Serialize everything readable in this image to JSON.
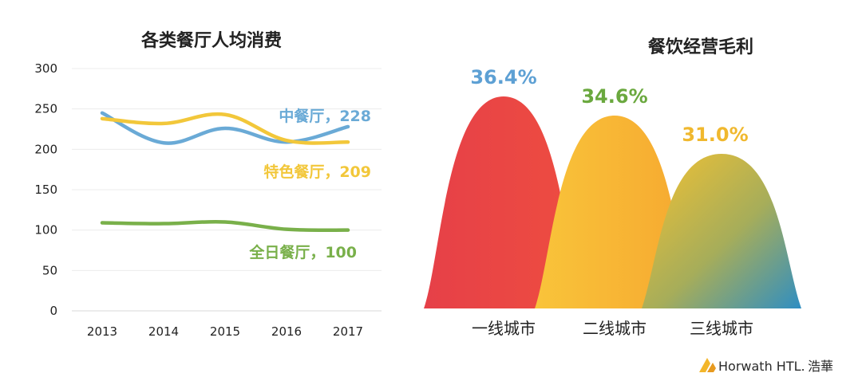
{
  "chart_data": [
    {
      "type": "line",
      "title": "各类餐厅人均消费",
      "x": [
        "2013",
        "2014",
        "2015",
        "2016",
        "2017"
      ],
      "ylim": [
        0,
        300
      ],
      "yticks": [
        "0",
        "50",
        "100",
        "150",
        "200",
        "250",
        "300"
      ],
      "grid": true,
      "series": [
        {
          "name": "中餐厅",
          "end_label": "中餐厅，228",
          "color": "#6aaad6",
          "values": [
            245,
            208,
            226,
            209,
            228
          ]
        },
        {
          "name": "特色餐厅",
          "end_label": "特色餐厅，209",
          "color": "#f2c73a",
          "values": [
            238,
            232,
            243,
            211,
            209
          ]
        },
        {
          "name": "全日餐厅",
          "end_label": "全日餐厅，100",
          "color": "#79b04a",
          "values": [
            109,
            108,
            110,
            101,
            100
          ]
        }
      ]
    },
    {
      "type": "bar",
      "title": "餐饮经营毛利",
      "categories": [
        "一线城市",
        "二线城市",
        "三线城市"
      ],
      "values": [
        36.4,
        34.6,
        31.0
      ],
      "labels": [
        "36.4%",
        "34.6%",
        "31.0%"
      ],
      "label_colors": [
        "#5da0d4",
        "#6aa83e",
        "#f0b82e"
      ]
    }
  ],
  "logo": {
    "text": "Horwath HTL.",
    "cn": "浩華"
  }
}
